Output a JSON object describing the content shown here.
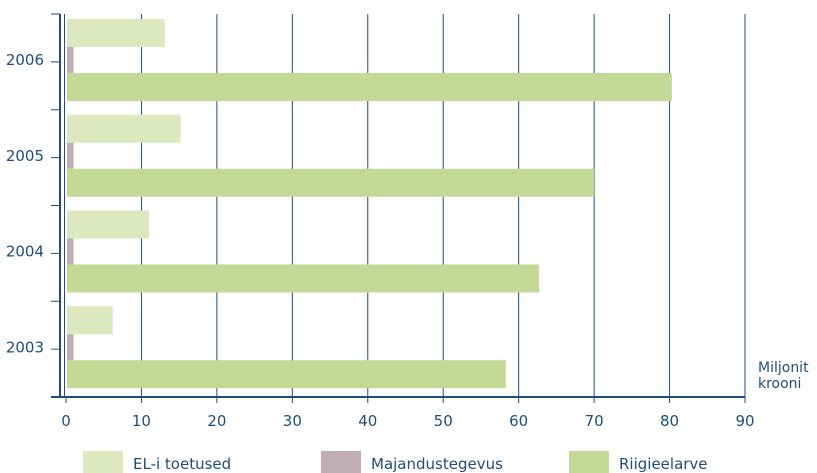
{
  "chart_data": {
    "type": "bar",
    "orientation": "horizontal",
    "title": "",
    "xlabel": "",
    "ylabel": "",
    "unit_label": [
      "Miljonit",
      "krooni"
    ],
    "categories": [
      "2006",
      "2005",
      "2004",
      "2003"
    ],
    "series": [
      {
        "name": "EL-i toetused",
        "color": "#dde8bf",
        "values": [
          13.1,
          15.2,
          11.0,
          6.2
        ]
      },
      {
        "name": "Majandustegevus",
        "color": "#bfaeb5",
        "values": [
          1.0,
          1.0,
          1.0,
          1.0
        ]
      },
      {
        "name": "Riigieelarve",
        "color": "#c2da96",
        "values": [
          80.3,
          70.0,
          62.7,
          58.3
        ]
      }
    ],
    "xlim": [
      0,
      90
    ],
    "xticks": [
      "0",
      "10",
      "20",
      "30",
      "40",
      "50",
      "60",
      "70",
      "80",
      "90"
    ],
    "grid": true,
    "legend_position": "bottom",
    "axis_color": "#1f4e79"
  }
}
